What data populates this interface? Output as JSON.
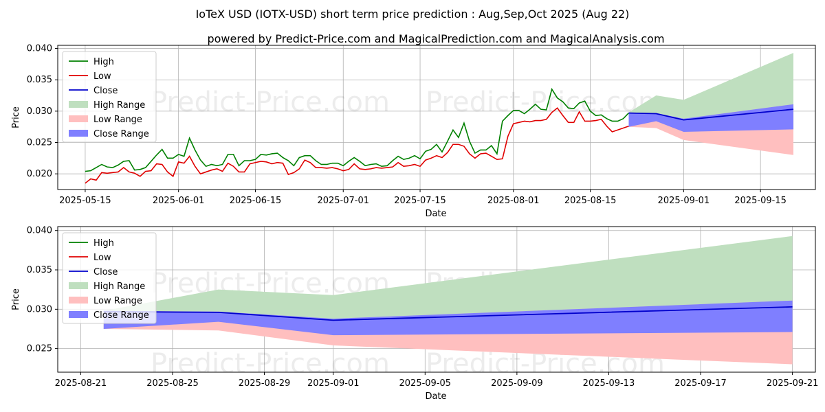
{
  "title": "IoTeX USD (IOTX-USD) short term price prediction : Aug,Sep,Oct 2025 (Aug 22)",
  "subtitle": "powered by Predict-Price.com and MagicalPrediction.com and MagicalAnalysis.com",
  "watermark": "Predict-Price.com",
  "colors": {
    "high": "#008000",
    "low": "#e00000",
    "close": "#0000cc",
    "high_range": "#bfdfbf",
    "low_range": "#ffbfbf",
    "close_range": "#7f7fff"
  },
  "chart_data": [
    {
      "type": "line",
      "xlabel": "Date",
      "ylabel": "Price",
      "ylim": [
        0.0175,
        0.0405
      ],
      "xlim": [
        "2025-05-10",
        "2025-09-25"
      ],
      "grid": true,
      "legend_position": "top-left",
      "legend": [
        "High",
        "Low",
        "Close",
        "High Range",
        "Low Range",
        "Close Range"
      ],
      "x_ticks": [
        "2025-05-15",
        "2025-06-01",
        "2025-06-15",
        "2025-07-01",
        "2025-07-15",
        "2025-08-01",
        "2025-08-15",
        "2025-09-01",
        "2025-09-15"
      ],
      "y_ticks": [
        "0.020",
        "0.025",
        "0.030",
        "0.035",
        "0.040"
      ],
      "history_start": "2025-05-15",
      "history_high": [
        0.0204,
        0.0205,
        0.021,
        0.0215,
        0.0211,
        0.021,
        0.0214,
        0.022,
        0.0221,
        0.0206,
        0.0207,
        0.021,
        0.022,
        0.023,
        0.0239,
        0.0225,
        0.0225,
        0.0231,
        0.0228,
        0.0257,
        0.0238,
        0.0222,
        0.0212,
        0.0215,
        0.0213,
        0.0215,
        0.0231,
        0.0231,
        0.0213,
        0.0221,
        0.0221,
        0.0223,
        0.0231,
        0.023,
        0.0232,
        0.0233,
        0.0226,
        0.0221,
        0.0213,
        0.0226,
        0.0229,
        0.0229,
        0.0221,
        0.0215,
        0.0215,
        0.0217,
        0.0217,
        0.0213,
        0.022,
        0.0226,
        0.022,
        0.0213,
        0.0215,
        0.0216,
        0.0212,
        0.0213,
        0.0221,
        0.0228,
        0.0223,
        0.0225,
        0.0229,
        0.0224,
        0.0236,
        0.0239,
        0.0247,
        0.0235,
        0.0252,
        0.027,
        0.0258,
        0.0281,
        0.0252,
        0.0233,
        0.0238,
        0.0238,
        0.0245,
        0.0232,
        0.0284,
        0.0293,
        0.0301,
        0.0301,
        0.0296,
        0.0303,
        0.0311,
        0.0303,
        0.0302,
        0.0335,
        0.0321,
        0.0315,
        0.0305,
        0.0304,
        0.0313,
        0.0316,
        0.03,
        0.0293,
        0.0294,
        0.0288,
        0.0284,
        0.0284,
        0.0288,
        0.0297
      ],
      "history_low": [
        0.0185,
        0.0192,
        0.019,
        0.0202,
        0.0201,
        0.0202,
        0.0203,
        0.021,
        0.0203,
        0.0201,
        0.0196,
        0.0204,
        0.0205,
        0.0216,
        0.0215,
        0.0203,
        0.0196,
        0.0219,
        0.0217,
        0.0228,
        0.0212,
        0.02,
        0.0203,
        0.0206,
        0.0208,
        0.0204,
        0.0217,
        0.0212,
        0.0203,
        0.0203,
        0.0216,
        0.0218,
        0.022,
        0.0219,
        0.0216,
        0.0218,
        0.0217,
        0.0199,
        0.0202,
        0.0208,
        0.0222,
        0.0218,
        0.021,
        0.021,
        0.0209,
        0.021,
        0.0208,
        0.0205,
        0.0207,
        0.0216,
        0.0208,
        0.0207,
        0.0208,
        0.021,
        0.0209,
        0.021,
        0.0211,
        0.0218,
        0.0212,
        0.0213,
        0.0215,
        0.0212,
        0.0222,
        0.0225,
        0.0229,
        0.0226,
        0.0234,
        0.0247,
        0.0247,
        0.0244,
        0.0232,
        0.0225,
        0.0232,
        0.0233,
        0.0228,
        0.0223,
        0.0224,
        0.026,
        0.028,
        0.0282,
        0.0284,
        0.0283,
        0.0285,
        0.0285,
        0.0287,
        0.0298,
        0.0305,
        0.0293,
        0.0282,
        0.0282,
        0.0299,
        0.0284,
        0.0284,
        0.0285,
        0.0287,
        0.0276,
        0.0267,
        0.027,
        0.0273,
        0.0276
      ]
    },
    {
      "type": "line",
      "xlabel": "Date",
      "ylabel": "Price",
      "ylim": [
        0.022,
        0.0405
      ],
      "xlim": [
        "2025-08-20",
        "2025-09-22"
      ],
      "grid": true,
      "legend_position": "top-left",
      "legend": [
        "High",
        "Low",
        "Close",
        "High Range",
        "Low Range",
        "Close Range"
      ],
      "x_ticks": [
        "2025-08-21",
        "2025-08-25",
        "2025-08-29",
        "2025-09-01",
        "2025-09-05",
        "2025-09-09",
        "2025-09-13",
        "2025-09-17",
        "2025-09-21"
      ],
      "y_ticks": [
        "0.025",
        "0.030",
        "0.035",
        "0.040"
      ]
    }
  ],
  "forecast": {
    "dates": [
      "2025-08-22",
      "2025-08-27",
      "2025-09-01",
      "2025-09-21"
    ],
    "high_upper": [
      0.0298,
      0.0325,
      0.0318,
      0.0393
    ],
    "low_lower": [
      0.0275,
      0.0273,
      0.0254,
      0.023
    ],
    "close_upper": [
      0.0298,
      0.0297,
      0.0288,
      0.0311
    ],
    "close_lower": [
      0.0275,
      0.0284,
      0.0267,
      0.0271
    ],
    "close": [
      0.0297,
      0.0296,
      0.0286,
      0.0303
    ]
  }
}
